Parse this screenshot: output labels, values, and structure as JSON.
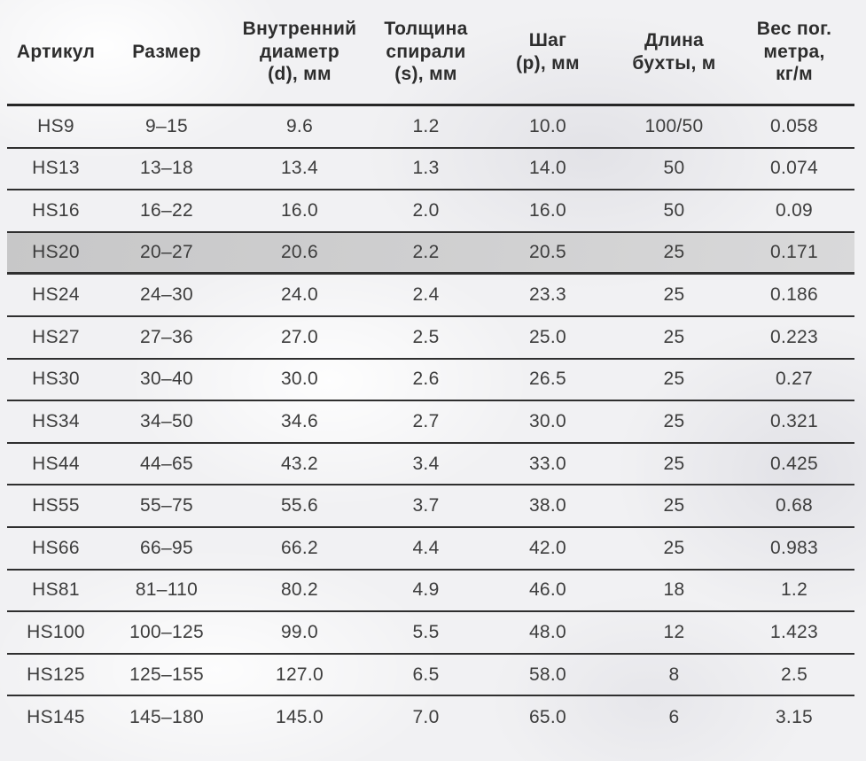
{
  "table": {
    "columns": [
      {
        "id": "article",
        "label": "Артикул"
      },
      {
        "id": "size",
        "label": "Размер"
      },
      {
        "id": "inner_diameter",
        "label": "Внутренний\nдиаметр\n(d), мм"
      },
      {
        "id": "spiral_thickness",
        "label": "Толщина\nспирали\n(s), мм"
      },
      {
        "id": "pitch",
        "label": "Шаг\n(p), мм"
      },
      {
        "id": "coil_length",
        "label": "Длина\nбухты, м"
      },
      {
        "id": "weight_per_meter",
        "label": "Вес пог.\nметра,\nкг/м"
      }
    ],
    "rows": [
      {
        "cells": [
          "HS9",
          "9–15",
          "9.6",
          "1.2",
          "10.0",
          "100/50",
          "0.058"
        ],
        "highlighted": false
      },
      {
        "cells": [
          "HS13",
          "13–18",
          "13.4",
          "1.3",
          "14.0",
          "50",
          "0.074"
        ],
        "highlighted": false
      },
      {
        "cells": [
          "HS16",
          "16–22",
          "16.0",
          "2.0",
          "16.0",
          "50",
          "0.09"
        ],
        "highlighted": false
      },
      {
        "cells": [
          "HS20",
          "20–27",
          "20.6",
          "2.2",
          "20.5",
          "25",
          "0.171"
        ],
        "highlighted": true
      },
      {
        "cells": [
          "HS24",
          "24–30",
          "24.0",
          "2.4",
          "23.3",
          "25",
          "0.186"
        ],
        "highlighted": false
      },
      {
        "cells": [
          "HS27",
          "27–36",
          "27.0",
          "2.5",
          "25.0",
          "25",
          "0.223"
        ],
        "highlighted": false
      },
      {
        "cells": [
          "HS30",
          "30–40",
          "30.0",
          "2.6",
          "26.5",
          "25",
          "0.27"
        ],
        "highlighted": false
      },
      {
        "cells": [
          "HS34",
          "34–50",
          "34.6",
          "2.7",
          "30.0",
          "25",
          "0.321"
        ],
        "highlighted": false
      },
      {
        "cells": [
          "HS44",
          "44–65",
          "43.2",
          "3.4",
          "33.0",
          "25",
          "0.425"
        ],
        "highlighted": false
      },
      {
        "cells": [
          "HS55",
          "55–75",
          "55.6",
          "3.7",
          "38.0",
          "25",
          "0.68"
        ],
        "highlighted": false
      },
      {
        "cells": [
          "HS66",
          "66–95",
          "66.2",
          "4.4",
          "42.0",
          "25",
          "0.983"
        ],
        "highlighted": false
      },
      {
        "cells": [
          "HS81",
          "81–110",
          "80.2",
          "4.9",
          "46.0",
          "18",
          "1.2"
        ],
        "highlighted": false
      },
      {
        "cells": [
          "HS100",
          "100–125",
          "99.0",
          "5.5",
          "48.0",
          "12",
          "1.423"
        ],
        "highlighted": false
      },
      {
        "cells": [
          "HS125",
          "125–155",
          "127.0",
          "6.5",
          "58.0",
          "8",
          "2.5"
        ],
        "highlighted": false
      },
      {
        "cells": [
          "HS145",
          "145–180",
          "145.0",
          "7.0",
          "65.0",
          "6",
          "3.15"
        ],
        "highlighted": false
      }
    ],
    "highlight_color": "#cdcdce",
    "line_color": "#2f2f2f",
    "header_text_color": "#2d2d2d",
    "text_color": "#3d3d3d",
    "background_color": "#f1f1f3"
  }
}
